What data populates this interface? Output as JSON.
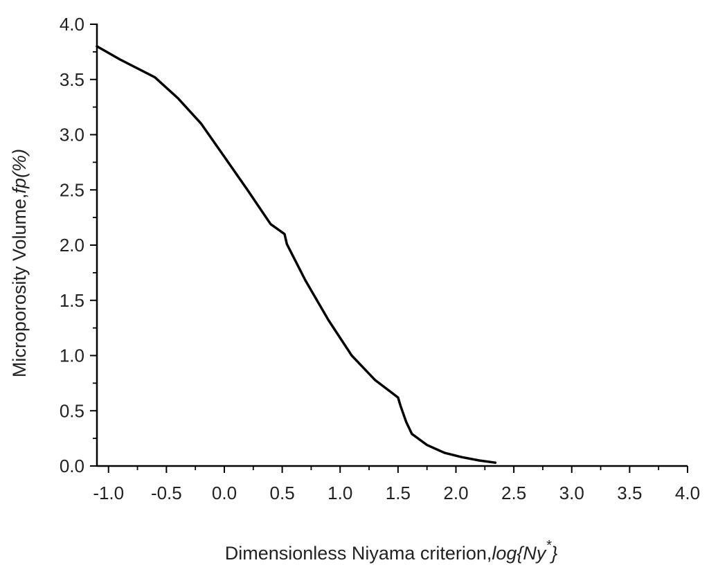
{
  "chart_data": {
    "type": "line",
    "title": "",
    "xlabel_parts": [
      "Dimensionless Niyama criterion,",
      "log{Ny",
      "*",
      "}"
    ],
    "ylabel_parts": [
      "Microporosity Volume,",
      "fp(%)"
    ],
    "xlim": [
      -1.1,
      4.0
    ],
    "ylim": [
      0.0,
      4.0
    ],
    "xticks": [
      -1.0,
      -0.5,
      0.0,
      0.5,
      1.0,
      1.5,
      2.0,
      2.5,
      3.0,
      3.5,
      4.0
    ],
    "xtick_labels": [
      "-1.0",
      "-0.5",
      "0.0",
      "0.5",
      "1.0",
      "1.5",
      "2.0",
      "2.5",
      "3.0",
      "3.5",
      "4.0"
    ],
    "yticks": [
      0.0,
      0.5,
      1.0,
      1.5,
      2.0,
      2.5,
      3.0,
      3.5,
      4.0
    ],
    "ytick_labels": [
      "0.0",
      "0.5",
      "1.0",
      "1.5",
      "2.0",
      "2.5",
      "3.0",
      "3.5",
      "4.0"
    ],
    "grid": false,
    "legend": "none",
    "line_color": "#000000",
    "series": [
      {
        "x": [
          -1.1,
          -0.9,
          -0.6,
          -0.4,
          -0.2,
          0.0,
          0.2,
          0.4,
          0.52,
          0.54,
          0.7,
          0.9,
          1.1,
          1.3,
          1.5,
          1.52,
          1.57,
          1.62,
          1.75,
          1.9,
          2.05,
          2.2,
          2.34
        ],
        "y": [
          3.8,
          3.68,
          3.52,
          3.33,
          3.1,
          2.8,
          2.5,
          2.19,
          2.1,
          2.01,
          1.68,
          1.32,
          1.0,
          0.78,
          0.62,
          0.55,
          0.4,
          0.29,
          0.19,
          0.12,
          0.08,
          0.05,
          0.03
        ]
      }
    ]
  }
}
